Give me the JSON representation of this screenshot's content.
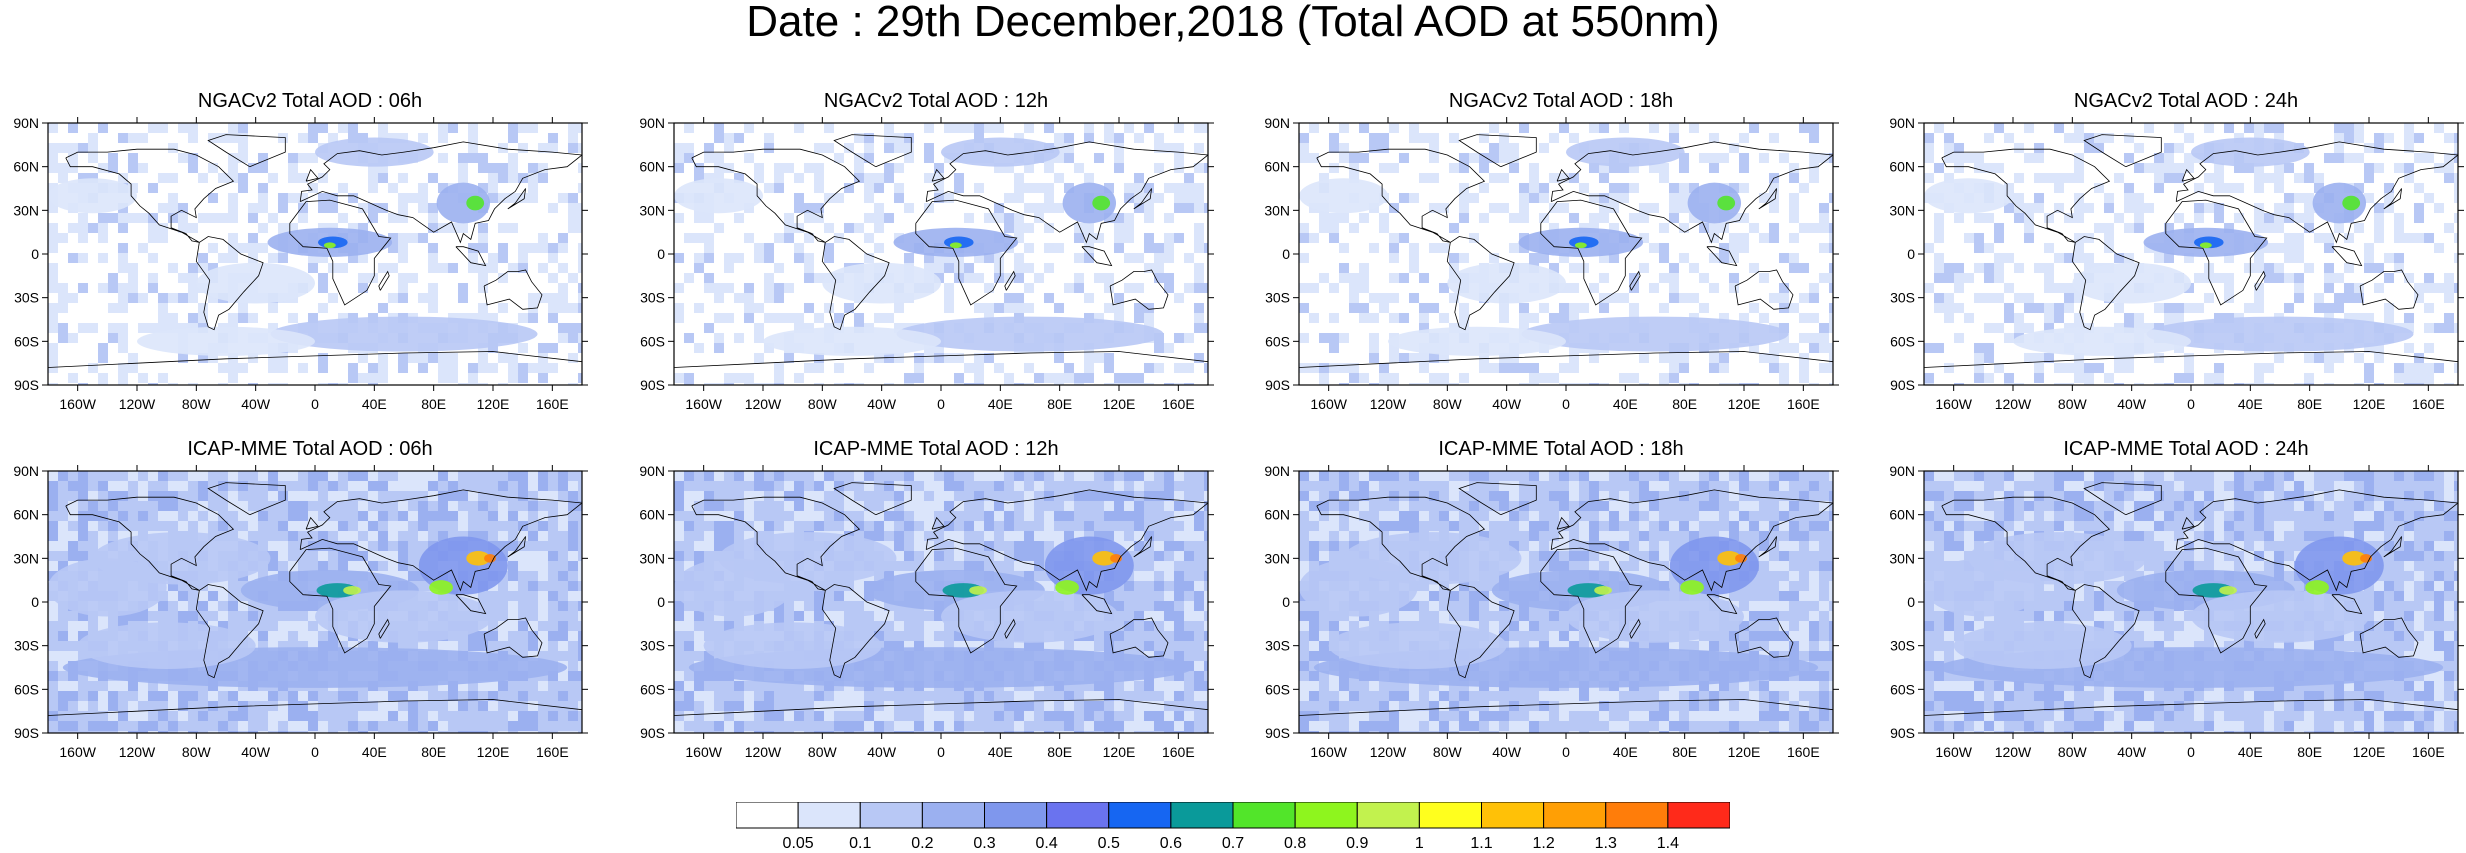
{
  "title": "Date : 29th December,2018 (Total AOD at 550nm)",
  "lat_labels": [
    "90N",
    "60N",
    "30N",
    "0",
    "30S",
    "60S",
    "90S"
  ],
  "lon_labels": [
    "160W",
    "120W",
    "80W",
    "40W",
    "0",
    "40E",
    "80E",
    "120E",
    "160E"
  ],
  "lat_values": [
    90,
    60,
    30,
    0,
    -30,
    -60,
    -90
  ],
  "lon_values": [
    -160,
    -120,
    -80,
    -40,
    0,
    40,
    80,
    120,
    160
  ],
  "panels": [
    {
      "title": "NGACv2 Total AOD : 06h",
      "model": "NGACv2",
      "forecast_hour": "06h"
    },
    {
      "title": "NGACv2 Total AOD : 12h",
      "model": "NGACv2",
      "forecast_hour": "12h"
    },
    {
      "title": "NGACv2 Total AOD : 18h",
      "model": "NGACv2",
      "forecast_hour": "18h"
    },
    {
      "title": "NGACv2 Total AOD : 24h",
      "model": "NGACv2",
      "forecast_hour": "24h"
    },
    {
      "title": "ICAP-MME Total AOD : 06h",
      "model": "ICAP-MME",
      "forecast_hour": "06h"
    },
    {
      "title": "ICAP-MME Total AOD : 12h",
      "model": "ICAP-MME",
      "forecast_hour": "12h"
    },
    {
      "title": "ICAP-MME Total AOD : 18h",
      "model": "ICAP-MME",
      "forecast_hour": "18h"
    },
    {
      "title": "ICAP-MME Total AOD : 24h",
      "model": "ICAP-MME",
      "forecast_hour": "24h"
    }
  ],
  "colorbar": {
    "labels": [
      "0.05",
      "0.1",
      "0.2",
      "0.3",
      "0.4",
      "0.5",
      "0.6",
      "0.7",
      "0.8",
      "0.9",
      "1",
      "1.1",
      "1.2",
      "1.3",
      "1.4"
    ],
    "colors": [
      "#ffffff",
      "#dbe5fb",
      "#b8c8f5",
      "#9bb0f0",
      "#7f97ed",
      "#6a73ef",
      "#1666f2",
      "#0a9a9a",
      "#52e52a",
      "#8ef51e",
      "#c2f24e",
      "#ffff1e",
      "#ffc107",
      "#ff9f05",
      "#ff7d0a",
      "#ff2a1a"
    ]
  }
}
